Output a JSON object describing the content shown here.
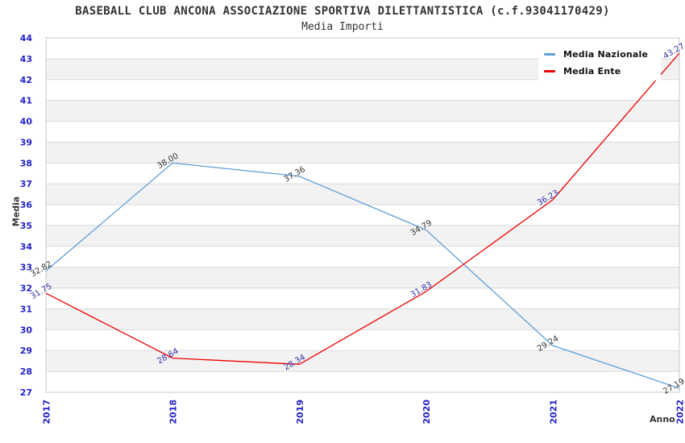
{
  "chart_data": {
    "type": "line",
    "title": "BASEBALL CLUB ANCONA ASSOCIAZIONE SPORTIVA DILETTANTISTICA (c.f.93041170429)",
    "subtitle": "Media Importi",
    "xlabel": "Anno",
    "ylabel": "Media",
    "categories": [
      "2017",
      "2018",
      "2019",
      "2020",
      "2021",
      "2022"
    ],
    "series": [
      {
        "name": "Media Nazionale",
        "color": "#5f9fd8",
        "label_color": "#333333",
        "values": [
          32.82,
          38.0,
          37.36,
          34.79,
          29.24,
          27.19
        ],
        "labels": [
          "32.82",
          "38.00",
          "37.36",
          "34.79",
          "29.24",
          "27.19"
        ]
      },
      {
        "name": "Media Ente",
        "color": "#ee0000",
        "label_color": "#3333aa",
        "values": [
          31.75,
          28.64,
          28.34,
          31.83,
          36.23,
          43.27
        ],
        "labels": [
          "31.75",
          "28.64",
          "28.34",
          "31.83",
          "36.23",
          "43.27"
        ]
      }
    ],
    "ylim": [
      27,
      44
    ],
    "y_ticks": [
      27,
      28,
      29,
      30,
      31,
      32,
      33,
      34,
      35,
      36,
      37,
      38,
      39,
      40,
      41,
      42,
      43,
      44
    ],
    "grid": "horizontal",
    "legend_position": "top-right",
    "band_color": "#f2f2f2",
    "grid_color": "#d9d9d9",
    "border_color": "#c9c9c9",
    "tick_label_color": "#2323c8",
    "axis_title_color": "#333333",
    "data_label_rotation_deg": -30,
    "x_tick_rotation_deg": -90
  }
}
